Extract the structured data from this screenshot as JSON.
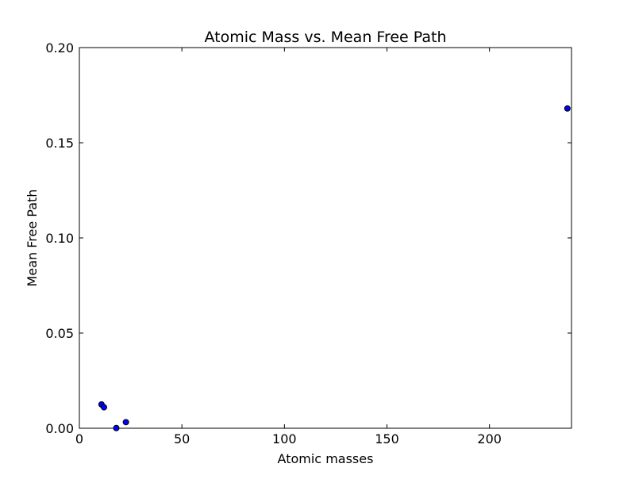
{
  "chart_data": {
    "type": "scatter",
    "title": "Atomic Mass vs. Mean Free Path",
    "xlabel": "Atomic masses",
    "ylabel": "Mean Free Path",
    "xlim": [
      0,
      240
    ],
    "ylim": [
      0,
      0.2
    ],
    "xticks": [
      0,
      50,
      100,
      150,
      200
    ],
    "xtick_labels": [
      "0",
      "50",
      "100",
      "150",
      "200"
    ],
    "yticks": [
      0,
      0.05,
      0.1,
      0.15,
      0.2
    ],
    "ytick_labels": [
      "0.00",
      "0.05",
      "0.10",
      "0.15",
      "0.20"
    ],
    "grid": false,
    "legend": false,
    "marker_color": "#0000ff",
    "marker_edge_color": "#000000",
    "series": [
      {
        "x": [
          10.8,
          12.0,
          18.0,
          22.7,
          238.0
        ],
        "y": [
          0.0125,
          0.011,
          0.0001,
          0.0032,
          0.168
        ]
      }
    ]
  }
}
